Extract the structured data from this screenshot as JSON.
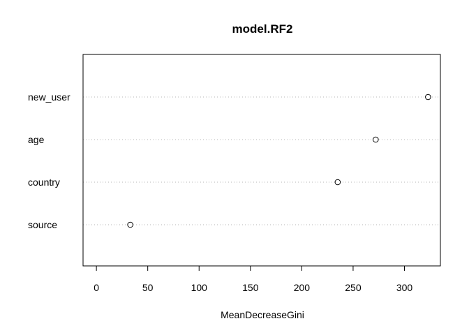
{
  "chart_data": {
    "type": "scatter",
    "title": "model.RF2",
    "xlabel": "MeanDecreaseGini",
    "ylabel": "",
    "xlim": [
      -13,
      335
    ],
    "x_ticks": [
      0,
      50,
      100,
      150,
      200,
      250,
      300
    ],
    "categories": [
      "new_user",
      "age",
      "country",
      "source"
    ],
    "values": [
      323,
      272,
      235,
      33
    ],
    "grid": "dotted horizontal guide lines"
  }
}
